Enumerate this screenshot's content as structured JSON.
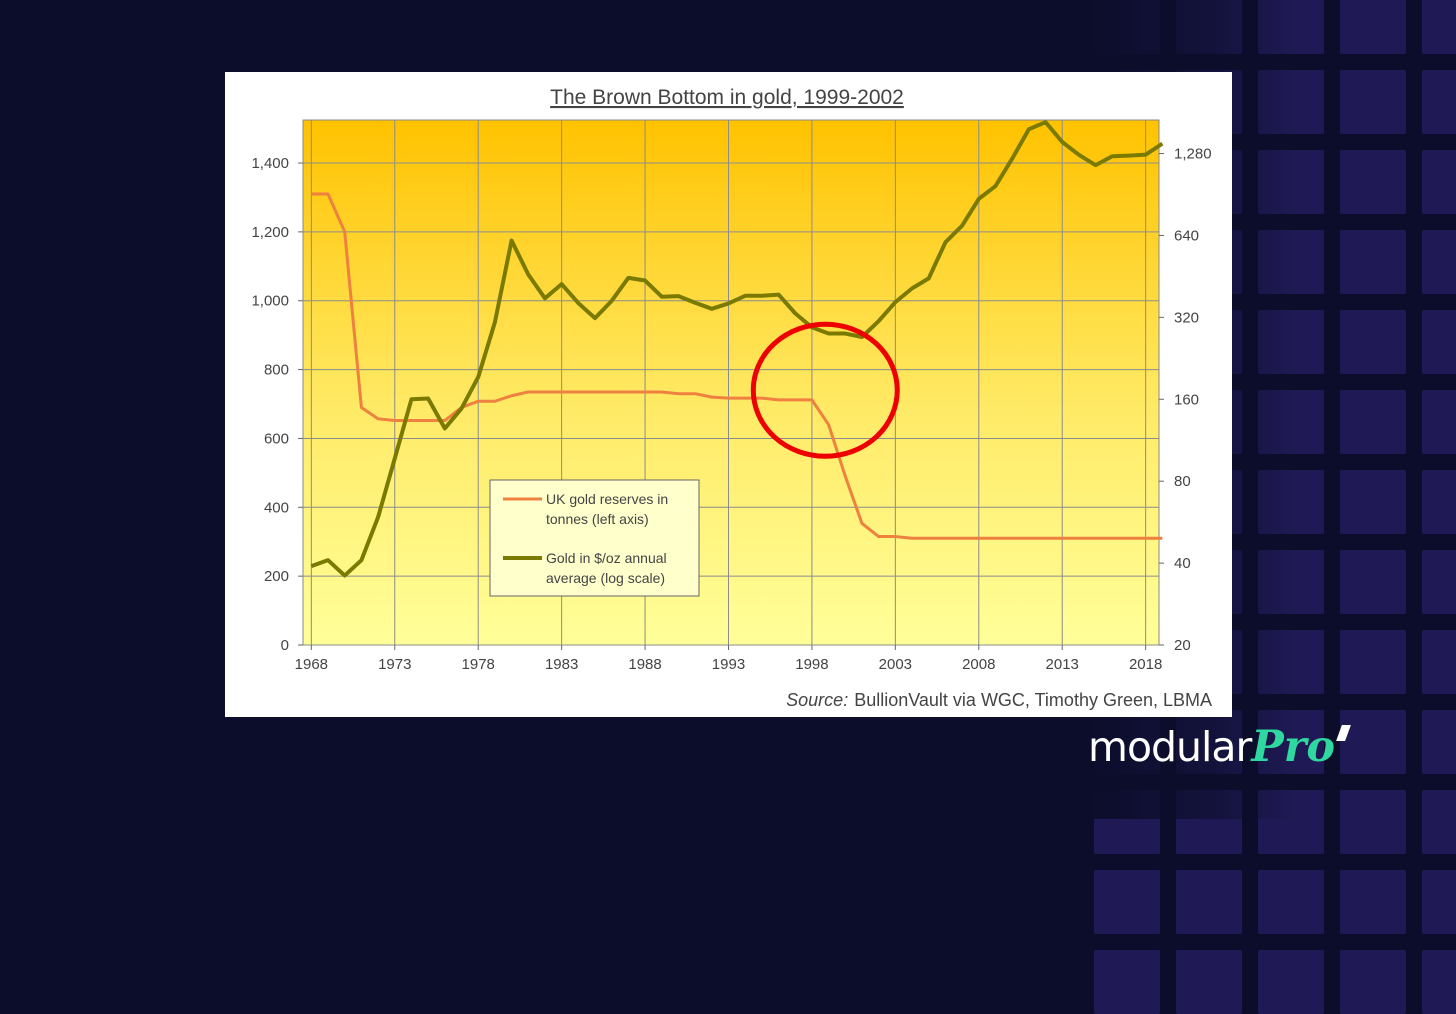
{
  "logo": {
    "part1": "modular",
    "part2": "Pro"
  },
  "chart_data": {
    "type": "line",
    "title": "The Brown Bottom in gold, 1999-2002",
    "source_prefix": "Source:",
    "source_text": "BullionVault via WGC, Timothy Green, LBMA",
    "x_ticks": [
      1968,
      1973,
      1978,
      1983,
      1988,
      1993,
      1998,
      2003,
      2008,
      2013,
      2018
    ],
    "x_range": [
      1967.5,
      2018.8
    ],
    "left_axis": {
      "range": [
        0,
        1525
      ],
      "ticks": [
        0,
        200,
        400,
        600,
        800,
        1000,
        1200,
        1400
      ],
      "tick_labels": [
        "0",
        "200",
        "400",
        "600",
        "800",
        "1,000",
        "1,200",
        "1,400"
      ]
    },
    "right_axis": {
      "scale": "log",
      "range": [
        20,
        1700
      ],
      "ticks": [
        20,
        40,
        80,
        160,
        320,
        640,
        1280
      ],
      "tick_labels": [
        "20",
        "40",
        "80",
        "160",
        "320",
        "640",
        "1,280"
      ]
    },
    "grid": true,
    "legend_position": "lower-center",
    "colors": {
      "reserves": "#ee8040",
      "gold": "#7a7a00",
      "circle": "#ee0000",
      "bg_top": "#ffc200",
      "bg_bottom": "#ffff99"
    },
    "highlight": {
      "x": 1998.8,
      "y_left": 740,
      "label": ""
    },
    "series": [
      {
        "name": "UK gold reserves in tonnes (left axis)",
        "axis": "left",
        "x": [
          1968,
          1969,
          1970,
          1971,
          1972,
          1973,
          1974,
          1975,
          1976,
          1977,
          1978,
          1979,
          1980,
          1981,
          1982,
          1983,
          1984,
          1985,
          1986,
          1987,
          1988,
          1989,
          1990,
          1991,
          1992,
          1993,
          1994,
          1995,
          1996,
          1997,
          1998,
          1999,
          2000,
          2001,
          2002,
          2003,
          2004,
          2005,
          2006,
          2007,
          2008,
          2009,
          2010,
          2011,
          2012,
          2013,
          2014,
          2015,
          2016,
          2017,
          2018,
          2019
        ],
        "values": [
          1310,
          1310,
          1200,
          690,
          657,
          652,
          652,
          652,
          652,
          690,
          708,
          708,
          724,
          735,
          735,
          735,
          735,
          735,
          735,
          735,
          735,
          735,
          730,
          730,
          720,
          717,
          717,
          717,
          712,
          712,
          712,
          640,
          490,
          353,
          315,
          315,
          310,
          310,
          310,
          310,
          310,
          310,
          310,
          310,
          310,
          310,
          310,
          310,
          310,
          310,
          310,
          310
        ]
      },
      {
        "name": "Gold in $/oz annual average (log scale)",
        "axis": "right",
        "x": [
          1968,
          1969,
          1970,
          1971,
          1972,
          1973,
          1974,
          1975,
          1976,
          1977,
          1978,
          1979,
          1980,
          1981,
          1982,
          1983,
          1984,
          1985,
          1986,
          1987,
          1988,
          1989,
          1990,
          1991,
          1992,
          1993,
          1994,
          1995,
          1996,
          1997,
          1998,
          1999,
          2000,
          2001,
          2002,
          2003,
          2004,
          2005,
          2006,
          2007,
          2008,
          2009,
          2010,
          2011,
          2012,
          2013,
          2014,
          2015,
          2016,
          2017,
          2018,
          2019
        ],
        "values": [
          39,
          41,
          36,
          41,
          59,
          97,
          160,
          161,
          125,
          148,
          193,
          307,
          613,
          460,
          376,
          424,
          361,
          318,
          368,
          447,
          437,
          381,
          383,
          362,
          344,
          360,
          384,
          384,
          388,
          331,
          294,
          279,
          279,
          271,
          310,
          364,
          409,
          445,
          604,
          695,
          872,
          972,
          1225,
          1572,
          1669,
          1411,
          1266,
          1160,
          1251,
          1257,
          1268,
          1392
        ]
      }
    ]
  }
}
